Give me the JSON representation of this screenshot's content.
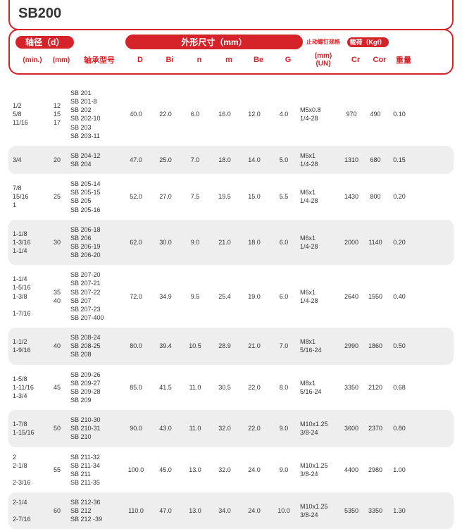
{
  "title": "SB200",
  "header": {
    "shaft_dia": "轴径（d）",
    "min": "(min.)",
    "mm": "(mm)",
    "model": "轴承型号",
    "dims": "外形尺寸（mm）",
    "D": "D",
    "Bi": "Bi",
    "n": "n",
    "m": "m",
    "Be": "Be",
    "G": "G",
    "screw": "止动螺钉规格",
    "screw_sub": "(mm)\n(UN)",
    "load": "载荷（Kgf）",
    "Cr": "Cr",
    "Cor": "Cor",
    "weight": "重量"
  },
  "rows": [
    {
      "alt": false,
      "min": "1/2\n5/8\n11/16",
      "mm": "12\n15\n17",
      "model": "SB 201\nSB 201-8\nSB 202\nSB 202-10\nSB 203\nSB 203-11",
      "D": "40.0",
      "Bi": "22.0",
      "n": "6.0",
      "m": "16.0",
      "Be": "12.0",
      "G": "4.0",
      "screw": "M5x0.8\n1/4-28",
      "Cr": "970",
      "Cor": "490",
      "wt": "0.10"
    },
    {
      "alt": true,
      "min": "3/4",
      "mm": "20",
      "model": "SB 204-12\nSB 204",
      "D": "47.0",
      "Bi": "25.0",
      "n": "7.0",
      "m": "18.0",
      "Be": "14.0",
      "G": "5.0",
      "screw": "M6x1\n1/4-28",
      "Cr": "1310",
      "Cor": "680",
      "wt": "0.15"
    },
    {
      "alt": false,
      "min": "7/8\n15/16\n1",
      "mm": "25",
      "model": "SB 205-14\nSB 205-15\nSB 205\nSB 205-16",
      "D": "52.0",
      "Bi": "27.0",
      "n": "7.5",
      "m": "19.5",
      "Be": "15.0",
      "G": "5.5",
      "screw": "M6x1\n1/4-28",
      "Cr": "1430",
      "Cor": "800",
      "wt": "0.20"
    },
    {
      "alt": true,
      "min": "1-1/8\n1-3/16\n1-1/4",
      "mm": "30",
      "model": "SB 206-18\nSB 206\nSB 206-19\nSB 206-20",
      "D": "62.0",
      "Bi": "30.0",
      "n": "9.0",
      "m": "21.0",
      "Be": "18.0",
      "G": "6.0",
      "screw": "M6x1\n1/4-28",
      "Cr": "2000",
      "Cor": "1140",
      "wt": "0.20"
    },
    {
      "alt": false,
      "min": "1-1/4\n1-5/16\n1-3/8\n\n1-7/16",
      "mm": "35\n40",
      "model": "SB 207-20\nSB 207-21\nSB 207-22\nSB 207\nSB 207-23\nSB 207-400",
      "D": "72.0",
      "Bi": "34.9",
      "n": "9.5",
      "m": "25.4",
      "Be": "19.0",
      "G": "6.0",
      "screw": "M6x1\n1/4-28",
      "Cr": "2640",
      "Cor": "1550",
      "wt": "0.40"
    },
    {
      "alt": true,
      "min": "1-1/2\n1-9/16",
      "mm": "40",
      "model": "SB 208-24\nSB 208-25\nSB 208",
      "D": "80.0",
      "Bi": "39.4",
      "n": "10.5",
      "m": "28.9",
      "Be": "21.0",
      "G": "7.0",
      "screw": "M8x1\n5/16-24",
      "Cr": "2990",
      "Cor": "1860",
      "wt": "0.50"
    },
    {
      "alt": false,
      "min": "1-5/8\n1-11/16\n1-3/4",
      "mm": "45",
      "model": "SB 209-26\nSB 209-27\nSB 209-28\nSB 209",
      "D": "85.0",
      "Bi": "41.5",
      "n": "11.0",
      "m": "30.5",
      "Be": "22.0",
      "G": "8.0",
      "screw": "M8x1\n5/16-24",
      "Cr": "3350",
      "Cor": "2120",
      "wt": "0.68"
    },
    {
      "alt": true,
      "min": "1-7/8\n1-15/16",
      "mm": "50",
      "model": "SB 210-30\nSB 210-31\nSB 210",
      "D": "90.0",
      "Bi": "43.0",
      "n": "11.0",
      "m": "32.0",
      "Be": "22.0",
      "G": "9.0",
      "screw": "M10x1.25\n3/8-24",
      "Cr": "3600",
      "Cor": "2370",
      "wt": "0.80"
    },
    {
      "alt": false,
      "min": "2\n2-1/8\n\n2-3/16",
      "mm": "55",
      "model": "SB 211-32\nSB 211-34\nSB 211\nSB 211-35",
      "D": "100.0",
      "Bi": "45.0",
      "n": "13.0",
      "m": "32.0",
      "Be": "24.0",
      "G": "9.0",
      "screw": "M10x1.25\n3/8-24",
      "Cr": "4400",
      "Cor": "2980",
      "wt": "1.00"
    },
    {
      "alt": true,
      "min": "2-1/4\n\n2-7/16",
      "mm": "60",
      "model": "SB 212-36\nSB 212\nSB 212 -39",
      "D": "110.0",
      "Bi": "47.0",
      "n": "13.0",
      "m": "34.0",
      "Be": "24.0",
      "G": "10.0",
      "screw": "M10x1.25\n3/8-24",
      "Cr": "5350",
      "Cor": "3350",
      "wt": "1.30"
    }
  ]
}
